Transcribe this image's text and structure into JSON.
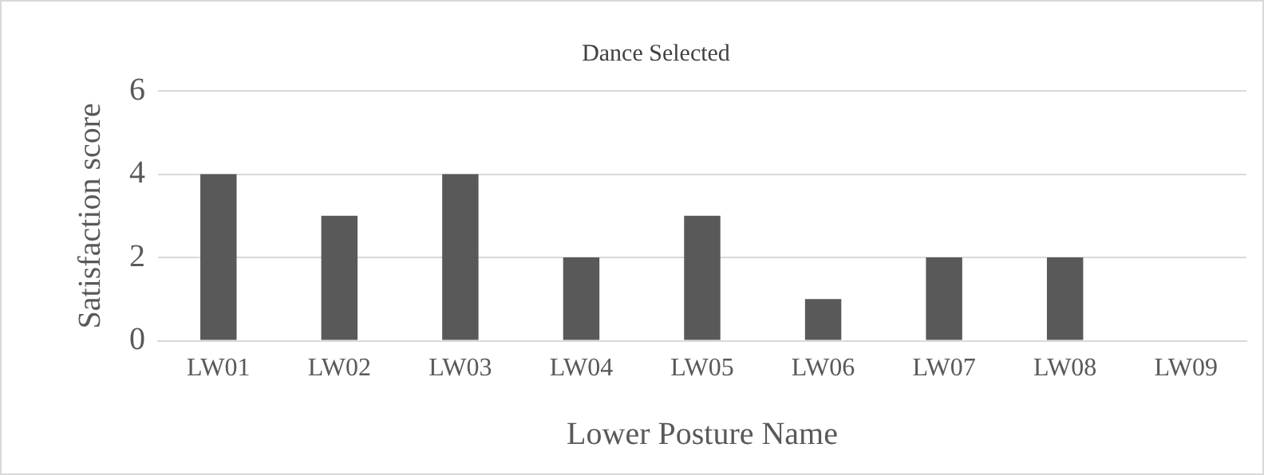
{
  "chart_data": {
    "type": "bar",
    "title": "Dance Selected",
    "xlabel": "Lower Posture Name",
    "ylabel": "Satisfaction score",
    "categories": [
      "LW01",
      "LW02",
      "LW03",
      "LW04",
      "LW05",
      "LW06",
      "LW07",
      "LW08",
      "LW09"
    ],
    "values": [
      4,
      3,
      4,
      2,
      3,
      1,
      2,
      2,
      0
    ],
    "color": "#595959",
    "ylim": [
      0,
      6
    ],
    "yticks": [
      0,
      2,
      4,
      6
    ],
    "grid": "y",
    "legend": false
  }
}
